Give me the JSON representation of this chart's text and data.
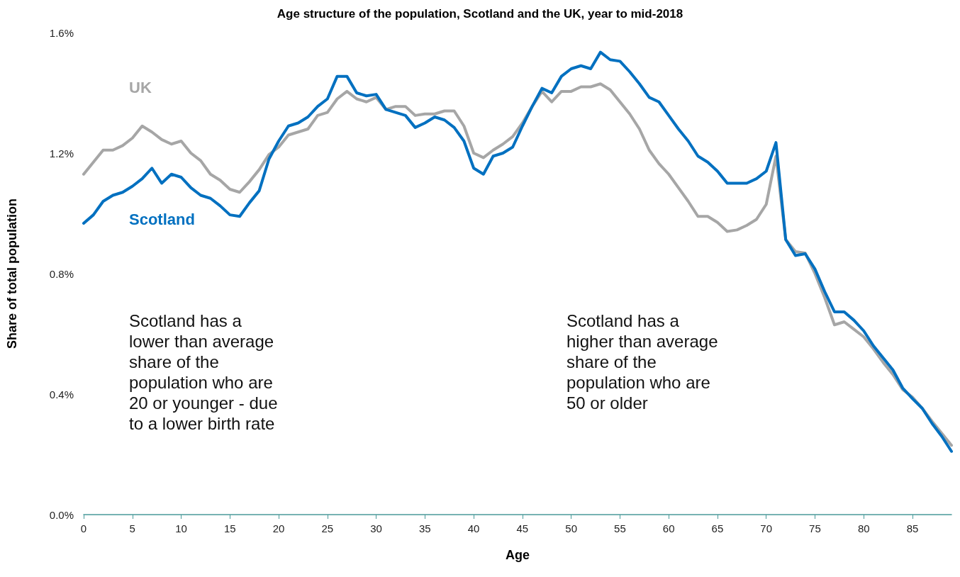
{
  "chart_data": {
    "type": "line",
    "title": "Age structure of the population, Scotland and the UK, year to mid-2018",
    "xlabel": "Age",
    "ylabel": "Share of total population",
    "x": [
      0,
      1,
      2,
      3,
      4,
      5,
      6,
      7,
      8,
      9,
      10,
      11,
      12,
      13,
      14,
      15,
      16,
      17,
      18,
      19,
      20,
      21,
      22,
      23,
      24,
      25,
      26,
      27,
      28,
      29,
      30,
      31,
      32,
      33,
      34,
      35,
      36,
      37,
      38,
      39,
      40,
      41,
      42,
      43,
      44,
      45,
      46,
      47,
      48,
      49,
      50,
      51,
      52,
      53,
      54,
      55,
      56,
      57,
      58,
      59,
      60,
      61,
      62,
      63,
      64,
      65,
      66,
      67,
      68,
      69,
      70,
      71,
      72,
      73,
      74,
      75,
      76,
      77,
      78,
      79,
      80,
      81,
      82,
      83,
      84,
      85,
      86,
      87,
      88,
      89
    ],
    "series": [
      {
        "name": "UK",
        "color": "#a6a6a6",
        "values": [
          1.13,
          1.17,
          1.21,
          1.21,
          1.225,
          1.25,
          1.29,
          1.27,
          1.245,
          1.23,
          1.24,
          1.2,
          1.175,
          1.13,
          1.11,
          1.08,
          1.07,
          1.105,
          1.145,
          1.195,
          1.22,
          1.26,
          1.27,
          1.28,
          1.325,
          1.335,
          1.38,
          1.405,
          1.38,
          1.37,
          1.385,
          1.345,
          1.355,
          1.355,
          1.325,
          1.33,
          1.33,
          1.34,
          1.34,
          1.29,
          1.2,
          1.185,
          1.21,
          1.23,
          1.255,
          1.3,
          1.355,
          1.405,
          1.37,
          1.405,
          1.405,
          1.42,
          1.42,
          1.43,
          1.41,
          1.37,
          1.33,
          1.28,
          1.21,
          1.165,
          1.13,
          1.085,
          1.04,
          0.99,
          0.99,
          0.97,
          0.94,
          0.945,
          0.96,
          0.98,
          1.03,
          1.19,
          0.913,
          0.873,
          0.868,
          0.8,
          0.72,
          0.63,
          0.64,
          0.615,
          0.59,
          0.55,
          0.505,
          0.465,
          0.415,
          0.39,
          0.353,
          0.31,
          0.27,
          0.23
        ]
      },
      {
        "name": "Scotland",
        "color": "#0070c0",
        "values": [
          0.967,
          0.995,
          1.04,
          1.06,
          1.07,
          1.09,
          1.115,
          1.15,
          1.1,
          1.13,
          1.12,
          1.085,
          1.06,
          1.05,
          1.025,
          0.995,
          0.99,
          1.035,
          1.075,
          1.18,
          1.24,
          1.29,
          1.3,
          1.32,
          1.355,
          1.38,
          1.455,
          1.455,
          1.4,
          1.39,
          1.395,
          1.345,
          1.335,
          1.325,
          1.285,
          1.3,
          1.32,
          1.31,
          1.285,
          1.24,
          1.15,
          1.13,
          1.19,
          1.2,
          1.22,
          1.29,
          1.355,
          1.415,
          1.4,
          1.455,
          1.48,
          1.49,
          1.48,
          1.535,
          1.51,
          1.505,
          1.47,
          1.43,
          1.385,
          1.37,
          1.325,
          1.28,
          1.24,
          1.19,
          1.17,
          1.14,
          1.1,
          1.1,
          1.1,
          1.115,
          1.14,
          1.235,
          0.913,
          0.86,
          0.866,
          0.815,
          0.74,
          0.673,
          0.673,
          0.645,
          0.61,
          0.56,
          0.52,
          0.48,
          0.42,
          0.385,
          0.353,
          0.303,
          0.26,
          0.21
        ]
      }
    ],
    "xlim": [
      0,
      89
    ],
    "xticks": [
      0,
      5,
      10,
      15,
      20,
      25,
      30,
      35,
      40,
      45,
      50,
      55,
      60,
      65,
      70,
      75,
      80,
      85
    ],
    "ylim": [
      0,
      1.6
    ],
    "yticks": [
      {
        "value": 0,
        "label": "0.0%"
      },
      {
        "value": 0.4,
        "label": "0.4%"
      },
      {
        "value": 0.8,
        "label": "0.8%"
      },
      {
        "value": 1.2,
        "label": "1.2%"
      },
      {
        "value": 1.6,
        "label": "1.6%"
      }
    ],
    "annotations": [
      "Scotland has a\nlower than average\nshare of the\npopulation who are\n20 or younger - due\nto a lower birth rate",
      "Scotland has a\nhigher than average\nshare of the\npopulation who are\n50 or older"
    ],
    "grid": false,
    "legend": false,
    "marker": "none",
    "line_style": "solid"
  }
}
